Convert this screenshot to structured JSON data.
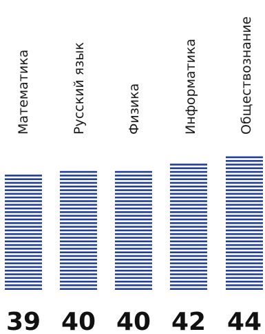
{
  "chart_data": {
    "type": "bar",
    "categories": [
      "Математика",
      "Русский язык",
      "Физика",
      "Информатика",
      "Обществознание"
    ],
    "values": [
      39,
      40,
      40,
      42,
      44
    ],
    "title": "",
    "xlabel": "",
    "ylabel": "",
    "bar_style": "horizontal-stripes",
    "colors": {
      "bar": "#1f3d99",
      "gap": "#ffffff",
      "text": "#111111"
    }
  }
}
